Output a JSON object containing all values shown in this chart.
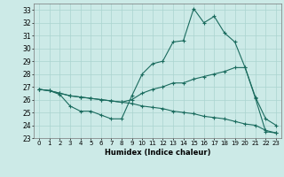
{
  "xlabel": "Humidex (Indice chaleur)",
  "background_color": "#cceae7",
  "grid_color": "#aad4d0",
  "line_color": "#1a6b5e",
  "xlim": [
    -0.5,
    23.5
  ],
  "ylim": [
    23,
    33.5
  ],
  "yticks": [
    23,
    24,
    25,
    26,
    27,
    28,
    29,
    30,
    31,
    32,
    33
  ],
  "xticks": [
    0,
    1,
    2,
    3,
    4,
    5,
    6,
    7,
    8,
    9,
    10,
    11,
    12,
    13,
    14,
    15,
    16,
    17,
    18,
    19,
    20,
    21,
    22,
    23
  ],
  "series": [
    {
      "x": [
        0,
        1,
        2,
        3,
        4,
        5,
        6,
        7,
        8,
        9,
        10,
        11,
        12,
        13,
        14,
        15,
        16,
        17,
        18,
        19,
        20,
        21,
        22,
        23
      ],
      "y": [
        26.8,
        26.7,
        26.4,
        25.5,
        25.1,
        25.1,
        24.8,
        24.5,
        24.5,
        26.3,
        28.0,
        28.8,
        29.0,
        30.5,
        30.6,
        33.1,
        32.0,
        32.5,
        31.2,
        30.5,
        28.5,
        26.1,
        23.5,
        23.4
      ]
    },
    {
      "x": [
        0,
        1,
        2,
        3,
        4,
        5,
        6,
        7,
        8,
        9,
        10,
        11,
        12,
        13,
        14,
        15,
        16,
        17,
        18,
        19,
        20,
        21,
        22,
        23
      ],
      "y": [
        26.8,
        26.7,
        26.5,
        26.3,
        26.2,
        26.1,
        26.0,
        25.9,
        25.8,
        26.0,
        26.5,
        26.8,
        27.0,
        27.3,
        27.3,
        27.6,
        27.8,
        28.0,
        28.2,
        28.5,
        28.5,
        26.2,
        24.5,
        24.0
      ]
    },
    {
      "x": [
        0,
        1,
        2,
        3,
        4,
        5,
        6,
        7,
        8,
        9,
        10,
        11,
        12,
        13,
        14,
        15,
        16,
        17,
        18,
        19,
        20,
        21,
        22,
        23
      ],
      "y": [
        26.8,
        26.7,
        26.5,
        26.3,
        26.2,
        26.1,
        26.0,
        25.9,
        25.8,
        25.7,
        25.5,
        25.4,
        25.3,
        25.1,
        25.0,
        24.9,
        24.7,
        24.6,
        24.5,
        24.3,
        24.1,
        24.0,
        23.6,
        23.4
      ]
    }
  ]
}
